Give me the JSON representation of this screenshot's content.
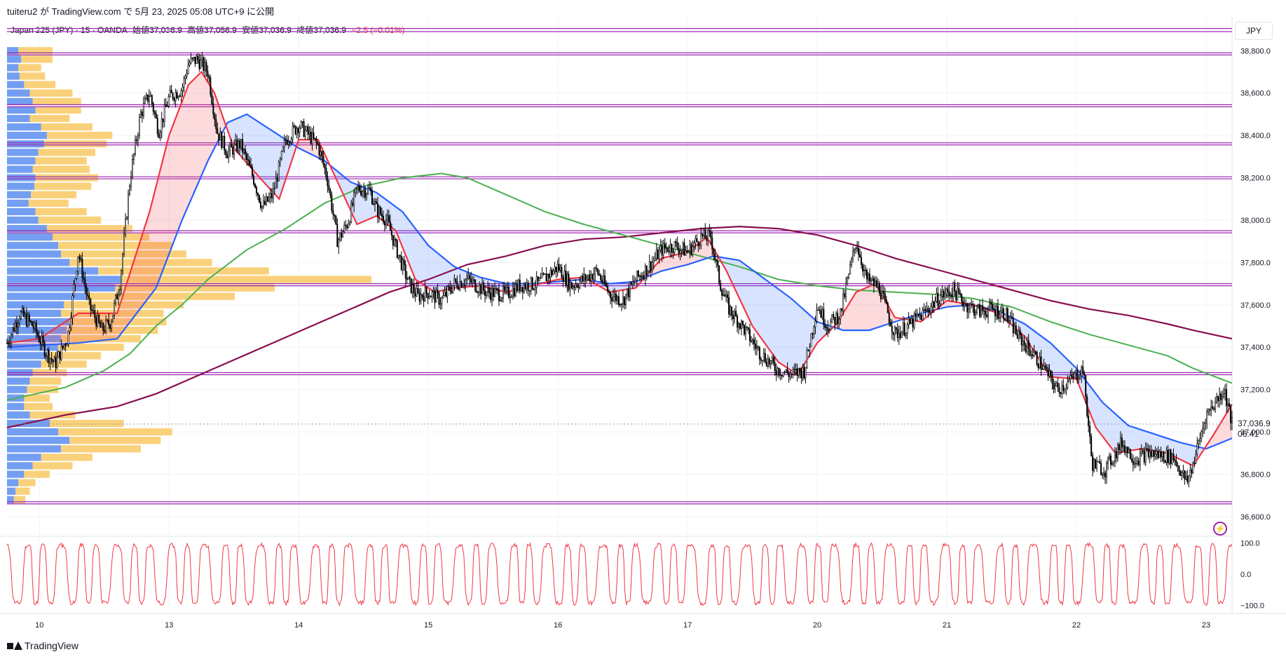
{
  "header": {
    "caption": "tuiteru2 が TradingView.com で 5月 23, 2025 05:08 UTC+9 に公開"
  },
  "legend": {
    "symbol": "Japan 225 (JPY) · 15 · OANDA",
    "open": "始値37,036.9",
    "high": "高値37,056.9",
    "low": "安値37,036.9",
    "close": "終値37,036.9",
    "change": "−2.5 (−0.01%)"
  },
  "currency": "JPY",
  "last_price": {
    "value": "37,036.9",
    "countdown": "06:41"
  },
  "footer": {
    "brand": "TradingView"
  },
  "colors": {
    "candle": "#000000",
    "ma_fast": "#f23645",
    "ma_mid": "#2962ff",
    "ma_slow": "#4caf50",
    "ma_long": "#880e4f",
    "level_line": "#9c27b0",
    "vp_up": "#5b8def",
    "vp_down": "#f9c55a",
    "osc": "#f23645"
  },
  "icons": {
    "alert": "lightning-icon",
    "brand": "tradingview-logo-icon"
  },
  "chart_data": {
    "type": "candlestick",
    "timeframe": "15",
    "ylim": [
      36550,
      38960
    ],
    "y_ticks": [
      36600,
      36800,
      37000,
      37200,
      37400,
      37600,
      37800,
      38000,
      38200,
      38400,
      38600,
      38800
    ],
    "y_tick_labels": [
      "36,600.0",
      "36,800.0",
      "37,000.0",
      "37,200.0",
      "37,400.0",
      "37,600.0",
      "37,800.0",
      "38,000.0",
      "38,200.0",
      "38,400.0",
      "38,600.0",
      "38,800.0"
    ],
    "x_days": [
      "10",
      "13",
      "14",
      "15",
      "16",
      "17",
      "20",
      "21",
      "22",
      "23"
    ],
    "x_day_index": [
      0,
      1,
      2,
      3,
      4,
      5,
      6,
      7,
      8,
      9
    ],
    "x_range": [
      -0.25,
      9.2
    ],
    "horizontal_levels": [
      38905,
      38890,
      38790,
      38780,
      38545,
      38535,
      38365,
      38355,
      38205,
      38195,
      37950,
      37940,
      37700,
      37690,
      37280,
      37270,
      36670,
      36660
    ],
    "close_path": [
      [
        -0.25,
        37420
      ],
      [
        -0.15,
        37560
      ],
      [
        -0.05,
        37500
      ],
      [
        0.05,
        37380
      ],
      [
        0.12,
        37320
      ],
      [
        0.22,
        37450
      ],
      [
        0.3,
        37850
      ],
      [
        0.38,
        37600
      ],
      [
        0.48,
        37480
      ],
      [
        0.55,
        37520
      ],
      [
        0.62,
        37700
      ],
      [
        0.7,
        38200
      ],
      [
        0.78,
        38500
      ],
      [
        0.85,
        38600
      ],
      [
        0.92,
        38420
      ],
      [
        1.0,
        38580
      ],
      [
        1.1,
        38620
      ],
      [
        1.15,
        38740
      ],
      [
        1.22,
        38760
      ],
      [
        1.3,
        38700
      ],
      [
        1.37,
        38420
      ],
      [
        1.45,
        38320
      ],
      [
        1.55,
        38360
      ],
      [
        1.65,
        38200
      ],
      [
        1.72,
        38060
      ],
      [
        1.8,
        38120
      ],
      [
        1.9,
        38380
      ],
      [
        2.0,
        38450
      ],
      [
        2.08,
        38400
      ],
      [
        2.15,
        38350
      ],
      [
        2.22,
        38200
      ],
      [
        2.3,
        37900
      ],
      [
        2.38,
        37990
      ],
      [
        2.45,
        38150
      ],
      [
        2.55,
        38140
      ],
      [
        2.6,
        38050
      ],
      [
        2.68,
        38000
      ],
      [
        2.75,
        37870
      ],
      [
        2.85,
        37700
      ],
      [
        2.92,
        37640
      ],
      [
        3.0,
        37660
      ],
      [
        3.1,
        37620
      ],
      [
        3.2,
        37700
      ],
      [
        3.3,
        37720
      ],
      [
        3.45,
        37660
      ],
      [
        3.6,
        37650
      ],
      [
        3.7,
        37690
      ],
      [
        3.85,
        37700
      ],
      [
        4.0,
        37780
      ],
      [
        4.1,
        37690
      ],
      [
        4.2,
        37720
      ],
      [
        4.3,
        37760
      ],
      [
        4.4,
        37650
      ],
      [
        4.5,
        37620
      ],
      [
        4.6,
        37720
      ],
      [
        4.7,
        37780
      ],
      [
        4.8,
        37860
      ],
      [
        4.9,
        37880
      ],
      [
        5.0,
        37850
      ],
      [
        5.1,
        37920
      ],
      [
        5.18,
        37920
      ],
      [
        5.25,
        37700
      ],
      [
        5.32,
        37580
      ],
      [
        5.42,
        37500
      ],
      [
        5.55,
        37380
      ],
      [
        5.68,
        37300
      ],
      [
        5.8,
        37270
      ],
      [
        5.9,
        37290
      ],
      [
        6.0,
        37600
      ],
      [
        6.08,
        37500
      ],
      [
        6.18,
        37560
      ],
      [
        6.3,
        37900
      ],
      [
        6.38,
        37720
      ],
      [
        6.48,
        37680
      ],
      [
        6.6,
        37460
      ],
      [
        6.7,
        37500
      ],
      [
        6.82,
        37560
      ],
      [
        6.95,
        37640
      ],
      [
        7.05,
        37670
      ],
      [
        7.15,
        37600
      ],
      [
        7.25,
        37570
      ],
      [
        7.35,
        37580
      ],
      [
        7.45,
        37560
      ],
      [
        7.55,
        37450
      ],
      [
        7.65,
        37380
      ],
      [
        7.75,
        37300
      ],
      [
        7.85,
        37200
      ],
      [
        7.95,
        37240
      ],
      [
        8.05,
        37300
      ],
      [
        8.12,
        36850
      ],
      [
        8.22,
        36820
      ],
      [
        8.35,
        36950
      ],
      [
        8.45,
        36870
      ],
      [
        8.55,
        36900
      ],
      [
        8.65,
        36890
      ],
      [
        8.75,
        36880
      ],
      [
        8.85,
        36760
      ],
      [
        8.9,
        36850
      ],
      [
        9.0,
        37080
      ],
      [
        9.08,
        37150
      ],
      [
        9.14,
        37200
      ],
      [
        9.2,
        37037
      ]
    ],
    "ma_fast": [
      [
        -0.25,
        37420
      ],
      [
        0.0,
        37440
      ],
      [
        0.3,
        37560
      ],
      [
        0.6,
        37560
      ],
      [
        0.85,
        38040
      ],
      [
        1.0,
        38400
      ],
      [
        1.15,
        38640
      ],
      [
        1.25,
        38700
      ],
      [
        1.35,
        38600
      ],
      [
        1.5,
        38340
      ],
      [
        1.7,
        38200
      ],
      [
        1.85,
        38100
      ],
      [
        2.0,
        38380
      ],
      [
        2.15,
        38380
      ],
      [
        2.3,
        38180
      ],
      [
        2.45,
        37980
      ],
      [
        2.6,
        38020
      ],
      [
        2.75,
        37950
      ],
      [
        2.9,
        37720
      ],
      [
        3.05,
        37660
      ],
      [
        3.2,
        37680
      ],
      [
        3.4,
        37690
      ],
      [
        3.6,
        37660
      ],
      [
        3.8,
        37690
      ],
      [
        4.0,
        37720
      ],
      [
        4.2,
        37730
      ],
      [
        4.4,
        37660
      ],
      [
        4.6,
        37680
      ],
      [
        4.8,
        37820
      ],
      [
        5.0,
        37850
      ],
      [
        5.15,
        37920
      ],
      [
        5.3,
        37760
      ],
      [
        5.5,
        37500
      ],
      [
        5.7,
        37330
      ],
      [
        5.85,
        37270
      ],
      [
        6.0,
        37420
      ],
      [
        6.15,
        37510
      ],
      [
        6.3,
        37660
      ],
      [
        6.45,
        37700
      ],
      [
        6.6,
        37540
      ],
      [
        6.8,
        37520
      ],
      [
        7.0,
        37620
      ],
      [
        7.2,
        37600
      ],
      [
        7.4,
        37560
      ],
      [
        7.6,
        37450
      ],
      [
        7.8,
        37260
      ],
      [
        8.0,
        37250
      ],
      [
        8.15,
        37020
      ],
      [
        8.3,
        36900
      ],
      [
        8.5,
        36920
      ],
      [
        8.7,
        36900
      ],
      [
        8.9,
        36840
      ],
      [
        9.05,
        36980
      ],
      [
        9.2,
        37130
      ]
    ],
    "ma_mid": [
      [
        -0.25,
        37400
      ],
      [
        0.3,
        37420
      ],
      [
        0.6,
        37440
      ],
      [
        0.9,
        37680
      ],
      [
        1.1,
        38000
      ],
      [
        1.3,
        38280
      ],
      [
        1.45,
        38460
      ],
      [
        1.6,
        38500
      ],
      [
        1.8,
        38420
      ],
      [
        2.0,
        38340
      ],
      [
        2.2,
        38280
      ],
      [
        2.4,
        38180
      ],
      [
        2.6,
        38130
      ],
      [
        2.8,
        38040
      ],
      [
        3.0,
        37880
      ],
      [
        3.2,
        37780
      ],
      [
        3.4,
        37730
      ],
      [
        3.6,
        37700
      ],
      [
        3.8,
        37700
      ],
      [
        4.0,
        37710
      ],
      [
        4.2,
        37720
      ],
      [
        4.4,
        37700
      ],
      [
        4.6,
        37710
      ],
      [
        4.8,
        37760
      ],
      [
        5.0,
        37790
      ],
      [
        5.2,
        37830
      ],
      [
        5.4,
        37810
      ],
      [
        5.6,
        37720
      ],
      [
        5.8,
        37630
      ],
      [
        6.0,
        37520
      ],
      [
        6.2,
        37480
      ],
      [
        6.4,
        37480
      ],
      [
        6.6,
        37520
      ],
      [
        6.8,
        37560
      ],
      [
        7.0,
        37590
      ],
      [
        7.2,
        37600
      ],
      [
        7.4,
        37570
      ],
      [
        7.6,
        37510
      ],
      [
        7.8,
        37420
      ],
      [
        8.0,
        37300
      ],
      [
        8.2,
        37140
      ],
      [
        8.4,
        37030
      ],
      [
        8.6,
        36990
      ],
      [
        8.8,
        36950
      ],
      [
        9.0,
        36920
      ],
      [
        9.2,
        36970
      ]
    ],
    "ma_slow": [
      [
        -0.25,
        37150
      ],
      [
        0.2,
        37210
      ],
      [
        0.5,
        37290
      ],
      [
        0.7,
        37370
      ],
      [
        0.9,
        37500
      ],
      [
        1.1,
        37600
      ],
      [
        1.3,
        37720
      ],
      [
        1.6,
        37860
      ],
      [
        1.9,
        37960
      ],
      [
        2.2,
        38080
      ],
      [
        2.5,
        38160
      ],
      [
        2.8,
        38200
      ],
      [
        3.1,
        38220
      ],
      [
        3.3,
        38200
      ],
      [
        3.6,
        38120
      ],
      [
        3.9,
        38040
      ],
      [
        4.2,
        37980
      ],
      [
        4.5,
        37930
      ],
      [
        4.8,
        37880
      ],
      [
        5.1,
        37830
      ],
      [
        5.4,
        37780
      ],
      [
        5.7,
        37720
      ],
      [
        6.0,
        37690
      ],
      [
        6.3,
        37670
      ],
      [
        6.6,
        37660
      ],
      [
        6.9,
        37650
      ],
      [
        7.2,
        37630
      ],
      [
        7.5,
        37590
      ],
      [
        7.8,
        37520
      ],
      [
        8.1,
        37460
      ],
      [
        8.4,
        37410
      ],
      [
        8.7,
        37360
      ],
      [
        8.9,
        37300
      ],
      [
        9.2,
        37230
      ]
    ],
    "ma_long": [
      [
        -0.25,
        37020
      ],
      [
        0.2,
        37080
      ],
      [
        0.6,
        37120
      ],
      [
        0.9,
        37180
      ],
      [
        1.2,
        37260
      ],
      [
        1.5,
        37340
      ],
      [
        1.8,
        37420
      ],
      [
        2.1,
        37500
      ],
      [
        2.4,
        37580
      ],
      [
        2.7,
        37660
      ],
      [
        3.0,
        37720
      ],
      [
        3.3,
        37790
      ],
      [
        3.6,
        37830
      ],
      [
        3.9,
        37880
      ],
      [
        4.2,
        37910
      ],
      [
        4.5,
        37920
      ],
      [
        4.8,
        37940
      ],
      [
        5.1,
        37960
      ],
      [
        5.4,
        37970
      ],
      [
        5.7,
        37960
      ],
      [
        6.0,
        37930
      ],
      [
        6.3,
        37880
      ],
      [
        6.6,
        37820
      ],
      [
        6.9,
        37770
      ],
      [
        7.2,
        37720
      ],
      [
        7.5,
        37670
      ],
      [
        7.8,
        37620
      ],
      [
        8.1,
        37580
      ],
      [
        8.4,
        37550
      ],
      [
        8.7,
        37510
      ],
      [
        8.9,
        37480
      ],
      [
        9.2,
        37440
      ]
    ],
    "volume_profile": {
      "levels": [
        38800,
        38760,
        38720,
        38680,
        38640,
        38600,
        38560,
        38520,
        38480,
        38440,
        38400,
        38360,
        38320,
        38280,
        38240,
        38200,
        38160,
        38120,
        38080,
        38040,
        38000,
        37960,
        37920,
        37880,
        37840,
        37800,
        37760,
        37720,
        37680,
        37640,
        37600,
        37560,
        37520,
        37480,
        37440,
        37400,
        37360,
        37320,
        37280,
        37240,
        37200,
        37160,
        37120,
        37080,
        37040,
        37000,
        36960,
        36920,
        36880,
        36840,
        36800,
        36760,
        36720,
        36680
      ],
      "up": [
        20,
        25,
        20,
        22,
        30,
        40,
        45,
        50,
        40,
        60,
        70,
        65,
        55,
        50,
        45,
        50,
        48,
        42,
        38,
        50,
        55,
        70,
        80,
        90,
        95,
        110,
        160,
        200,
        190,
        140,
        100,
        95,
        110,
        105,
        95,
        90,
        70,
        60,
        45,
        40,
        35,
        30,
        30,
        40,
        75,
        90,
        110,
        95,
        60,
        45,
        30,
        20,
        15,
        12
      ],
      "down": [
        60,
        55,
        40,
        45,
        55,
        75,
        85,
        80,
        70,
        90,
        115,
        110,
        100,
        90,
        100,
        110,
        100,
        80,
        70,
        90,
        110,
        150,
        170,
        200,
        220,
        250,
        300,
        440,
        280,
        260,
        210,
        180,
        170,
        160,
        140,
        115,
        95,
        80,
        60,
        55,
        55,
        45,
        50,
        80,
        130,
        200,
        160,
        140,
        90,
        70,
        45,
        30,
        25,
        20
      ]
    },
    "oscillator": {
      "ylim": [
        -115,
        115
      ],
      "y_ticks": [
        100,
        0,
        -100
      ],
      "y_tick_labels": [
        "100.0",
        "0.0",
        "−100.0"
      ],
      "cycles_per_day": 7.2
    }
  }
}
